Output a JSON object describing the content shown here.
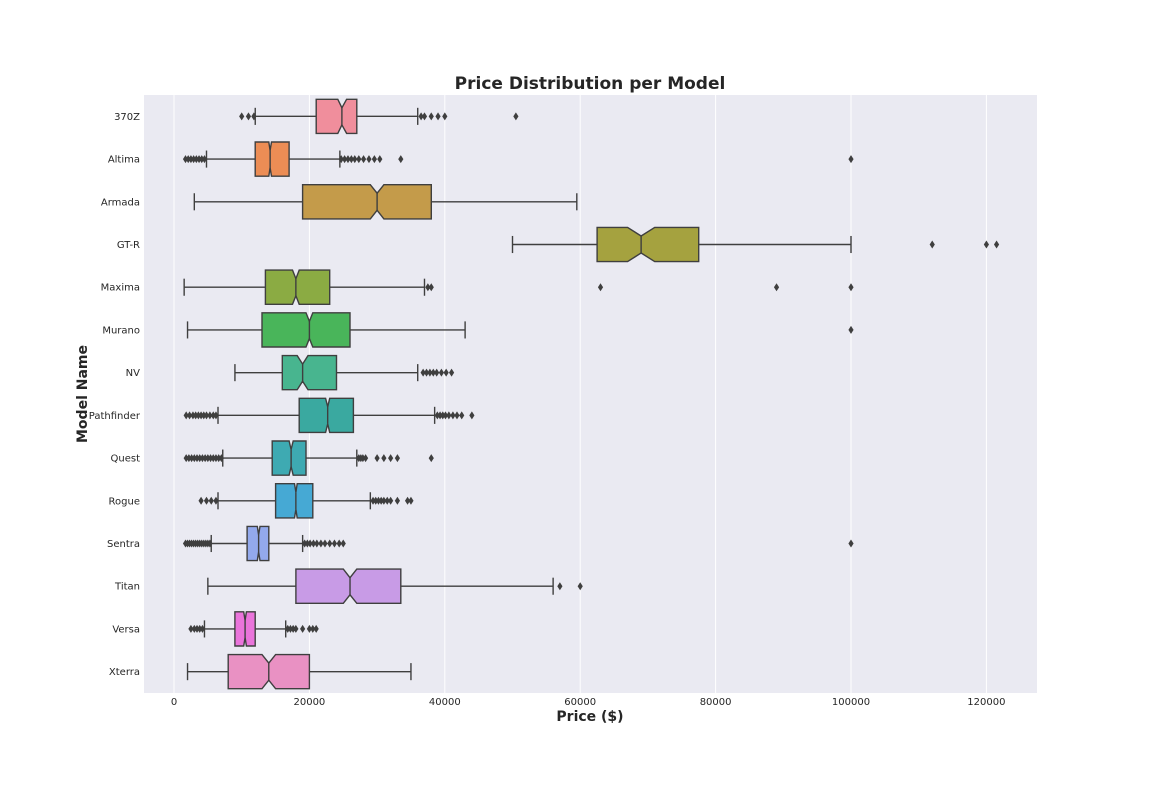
{
  "chart_data": {
    "type": "box",
    "orientation": "horizontal",
    "notched": true,
    "title": "Price Distribution per Model",
    "xlabel": "Price ($)",
    "ylabel": "Model Name",
    "xlim": [
      -4500,
      127500
    ],
    "xticks": [
      0,
      20000,
      40000,
      60000,
      80000,
      100000,
      120000
    ],
    "xtick_labels": [
      "0",
      "20000",
      "40000",
      "60000",
      "80000",
      "100000",
      "120000"
    ],
    "grid": true,
    "background": "#eaeaf2",
    "series": [
      {
        "name": "370Z",
        "color": "#f08e9c",
        "whisker_low": 12000,
        "q1": 21000,
        "median": 24800,
        "q3": 27000,
        "whisker_high": 36000,
        "notch_low": 24200,
        "notch_high": 25500,
        "outliers": [
          10000,
          11000,
          11800,
          36500,
          37000,
          38000,
          39000,
          40000,
          50500
        ]
      },
      {
        "name": "Altima",
        "color": "#ec8d55",
        "whisker_low": 4800,
        "q1": 12000,
        "median": 14200,
        "q3": 17000,
        "whisker_high": 24500,
        "notch_low": 14000,
        "notch_high": 14400,
        "outliers": [
          1700,
          2100,
          2500,
          2900,
          3300,
          3700,
          4100,
          4500,
          24700,
          25200,
          25700,
          26200,
          26700,
          27300,
          28000,
          28800,
          29600,
          30400,
          33500,
          100000
        ]
      },
      {
        "name": "Armada",
        "color": "#c49b4a",
        "whisker_low": 3000,
        "q1": 19000,
        "median": 30000,
        "q3": 38000,
        "whisker_high": 59500,
        "notch_low": 29000,
        "notch_high": 31000,
        "outliers": []
      },
      {
        "name": "GT-R",
        "color": "#a5a23f",
        "whisker_low": 50000,
        "q1": 62500,
        "median": 69000,
        "q3": 77500,
        "whisker_high": 100000,
        "notch_low": 67000,
        "notch_high": 71000,
        "outliers": [
          112000,
          120000,
          121500
        ]
      },
      {
        "name": "Maxima",
        "color": "#8bab43",
        "whisker_low": 1500,
        "q1": 13500,
        "median": 18000,
        "q3": 23000,
        "whisker_high": 37000,
        "notch_low": 17500,
        "notch_high": 18500,
        "outliers": [
          37500,
          38000,
          63000,
          89000,
          100000
        ]
      },
      {
        "name": "Murano",
        "color": "#49b55a",
        "whisker_low": 2000,
        "q1": 13000,
        "median": 20000,
        "q3": 26000,
        "whisker_high": 43000,
        "notch_low": 19500,
        "notch_high": 20500,
        "outliers": [
          100000
        ]
      },
      {
        "name": "NV",
        "color": "#48b58f",
        "whisker_low": 9000,
        "q1": 16000,
        "median": 19000,
        "q3": 24000,
        "whisker_high": 36000,
        "notch_low": 18200,
        "notch_high": 19800,
        "outliers": [
          36800,
          37300,
          37800,
          38300,
          38800,
          39500,
          40200,
          41000
        ]
      },
      {
        "name": "Pathfinder",
        "color": "#3aa9a0",
        "whisker_low": 6500,
        "q1": 18500,
        "median": 22700,
        "q3": 26500,
        "whisker_high": 38500,
        "notch_low": 22400,
        "notch_high": 23000,
        "outliers": [
          1800,
          2300,
          2800,
          3200,
          3600,
          4000,
          4400,
          4800,
          5300,
          5800,
          6200,
          38900,
          39300,
          39700,
          40100,
          40600,
          41200,
          41800,
          42500,
          44000
        ]
      },
      {
        "name": "Quest",
        "color": "#3eaab2",
        "whisker_low": 7200,
        "q1": 14500,
        "median": 17300,
        "q3": 19500,
        "whisker_high": 27000,
        "notch_low": 17000,
        "notch_high": 17600,
        "outliers": [
          1800,
          2200,
          2600,
          3000,
          3400,
          3800,
          4200,
          4600,
          5000,
          5400,
          5800,
          6200,
          6600,
          7000,
          27300,
          27600,
          27900,
          28300,
          30000,
          31000,
          32000,
          33000,
          38000
        ]
      },
      {
        "name": "Rogue",
        "color": "#46a9d4",
        "whisker_low": 6500,
        "q1": 15000,
        "median": 18000,
        "q3": 20500,
        "whisker_high": 29000,
        "notch_low": 17800,
        "notch_high": 18200,
        "outliers": [
          4000,
          4800,
          5500,
          6200,
          29400,
          29800,
          30200,
          30600,
          31000,
          31500,
          32000,
          33000,
          34500,
          35000
        ]
      },
      {
        "name": "Sentra",
        "color": "#93a9ec",
        "whisker_low": 5500,
        "q1": 10800,
        "median": 12500,
        "q3": 14000,
        "whisker_high": 19000,
        "notch_low": 12300,
        "notch_high": 12700,
        "outliers": [
          1700,
          2000,
          2300,
          2600,
          2900,
          3200,
          3500,
          3800,
          4100,
          4400,
          4700,
          5000,
          5300,
          19300,
          19700,
          20100,
          20600,
          21100,
          21700,
          22300,
          23000,
          23700,
          24400,
          25000,
          100000
        ]
      },
      {
        "name": "Titan",
        "color": "#c89be6",
        "whisker_low": 5000,
        "q1": 18000,
        "median": 26000,
        "q3": 33500,
        "whisker_high": 56000,
        "notch_low": 25000,
        "notch_high": 27000,
        "outliers": [
          57000,
          60000
        ]
      },
      {
        "name": "Versa",
        "color": "#ea74db",
        "whisker_low": 4500,
        "q1": 9000,
        "median": 10500,
        "q3": 12000,
        "whisker_high": 16500,
        "notch_low": 10300,
        "notch_high": 10700,
        "outliers": [
          2500,
          3000,
          3400,
          3800,
          4200,
          16800,
          17200,
          17600,
          18000,
          19000,
          20000,
          20500,
          21000
        ]
      },
      {
        "name": "Xterra",
        "color": "#e991c3",
        "whisker_low": 2000,
        "q1": 8000,
        "median": 14000,
        "q3": 20000,
        "whisker_high": 35000,
        "notch_low": 13000,
        "notch_high": 15000,
        "outliers": []
      }
    ]
  }
}
